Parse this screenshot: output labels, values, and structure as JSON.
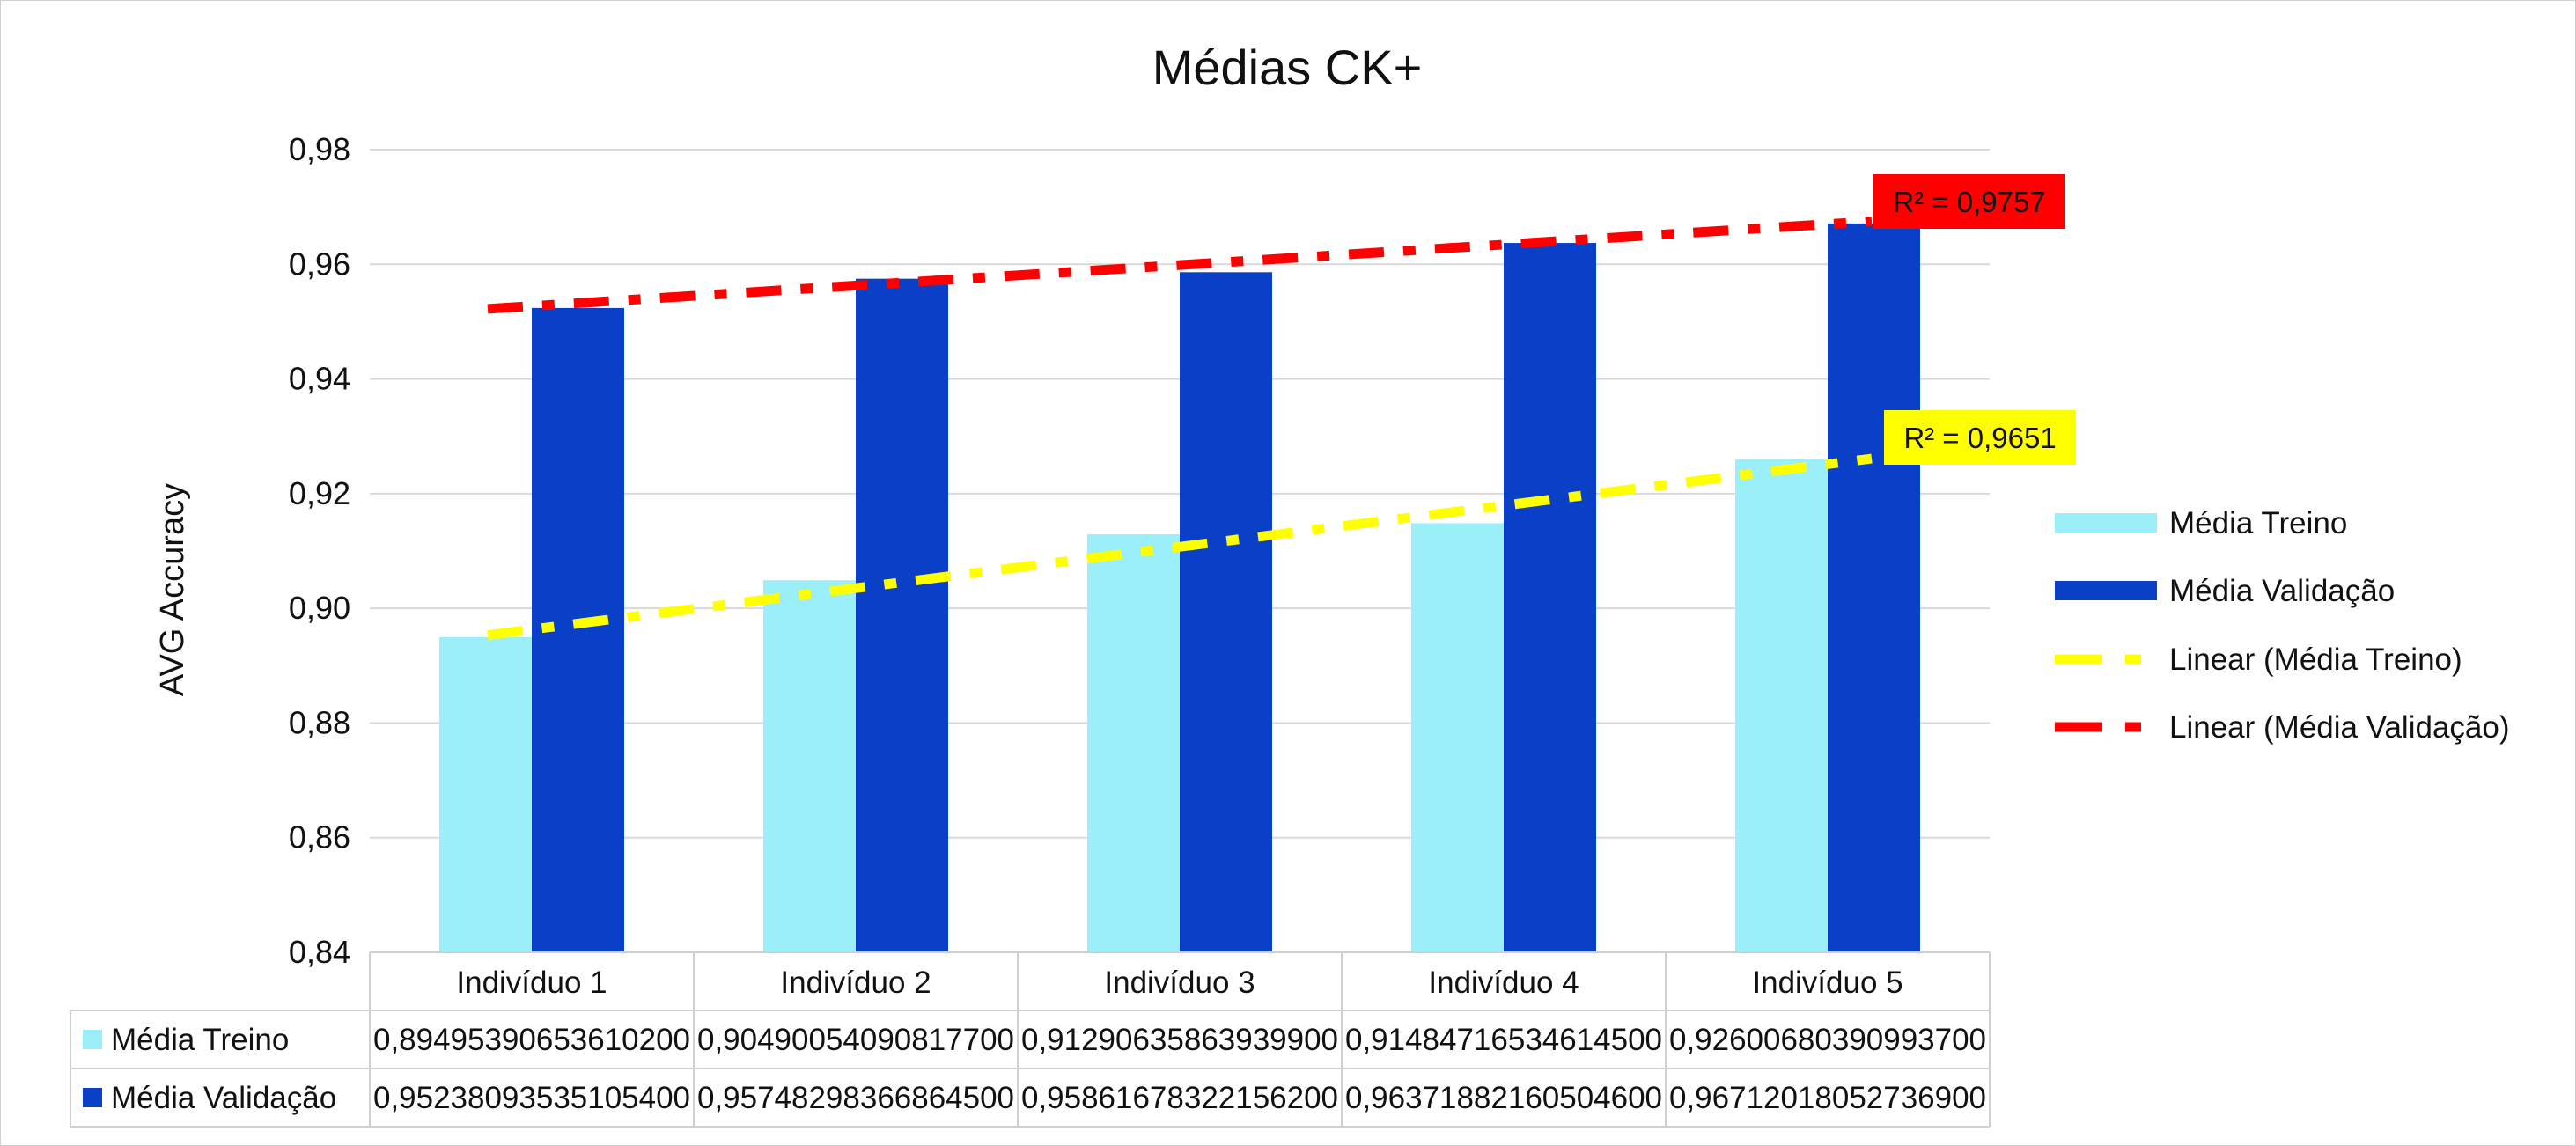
{
  "chart_data": {
    "type": "bar",
    "title": "Médias CK+",
    "ylabel": "AVG Accuracy",
    "xlabel": "",
    "ylim": [
      0.84,
      0.98
    ],
    "yticks": [
      "0,84",
      "0,86",
      "0,88",
      "0,90",
      "0,92",
      "0,94",
      "0,96",
      "0,98"
    ],
    "grid": true,
    "legend_position": "right",
    "categories": [
      "Indivíduo 1",
      "Indivíduo 2",
      "Indivíduo 3",
      "Indivíduo 4",
      "Indivíduo 5"
    ],
    "series": [
      {
        "name": "Média Treino",
        "color": "#9aeff8",
        "values": [
          0.894953906536102,
          0.904900540908177,
          0.912906358639399,
          0.914847165346145,
          0.926006803909937
        ],
        "table_values": [
          "0,89495390653610200",
          "0,90490054090817700",
          "0,91290635863939900",
          "0,91484716534614500",
          "0,92600680390993700"
        ]
      },
      {
        "name": "Média Validação",
        "color": "#0a3fc8",
        "values": [
          0.952380935351054,
          0.957482983668645,
          0.958616783221562,
          0.963718821605046,
          0.967120180527369
        ],
        "table_values": [
          "0,95238093535105400",
          "0,95748298366864500",
          "0,95861678322156200",
          "0,96371882160504600",
          "0,96712018052736900"
        ]
      }
    ],
    "trendlines": [
      {
        "name": "Linear (Média Treino)",
        "color": "#ffff00",
        "r2_label": "R² = 0,9651",
        "label_bg": "#ffff00"
      },
      {
        "name": "Linear (Média Validação)",
        "color": "#ff0000",
        "r2_label": "R² = 0,9757",
        "label_bg": "#ff0000"
      }
    ]
  }
}
